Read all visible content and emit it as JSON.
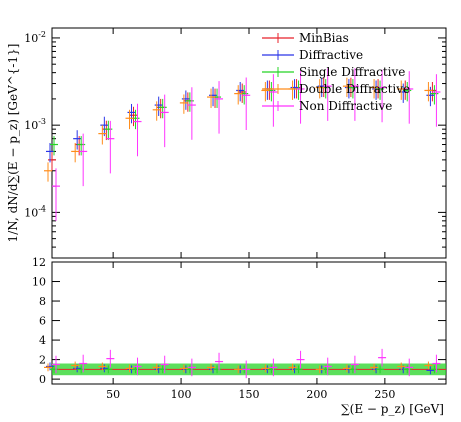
{
  "chart_data": [
    {
      "type": "scatter",
      "panel": "main",
      "title": "",
      "xlabel": "",
      "ylabel": "1/N, dN/d∑(E − p_z) [GeV^{-1}]",
      "xlim": [
        5,
        295
      ],
      "ylim": [
        3e-05,
        0.013
      ],
      "yscale": "log",
      "x_ticks": [
        50,
        100,
        150,
        200,
        250
      ],
      "y_tick_labels": [
        "10^{-4}",
        "10^{-3}",
        "10^{-2}"
      ],
      "legend": {
        "position": "top-right",
        "entries": [
          "MinBias",
          "Diffractive",
          "Single Diffractive",
          "Double Diffractive",
          "Non Diffractive"
        ]
      },
      "colors": {
        "MinBias": "#e8202a",
        "Diffractive": "#2a35e8",
        "Single Diffractive": "#25d425",
        "Double Diffractive": "#ff8c1a",
        "Non Diffractive": "#ff33ff"
      },
      "series": [
        {
          "name": "MinBias",
          "x": [
            5,
            25,
            45,
            65,
            85,
            105,
            125,
            145,
            165,
            185,
            205,
            225,
            245,
            265,
            285
          ],
          "y": [
            0.0004,
            0.0006,
            0.0009,
            0.0013,
            0.0016,
            0.0019,
            0.0021,
            0.0024,
            0.0026,
            0.0027,
            0.0028,
            0.0028,
            0.0027,
            0.0026,
            0.0025
          ]
        },
        {
          "name": "Diffractive",
          "x": [
            5,
            25,
            45,
            65,
            85,
            105,
            125,
            145,
            165,
            185,
            205,
            225,
            245,
            265,
            285
          ],
          "y": [
            0.0005,
            0.0007,
            0.001,
            0.0014,
            0.0017,
            0.002,
            0.0022,
            0.0025,
            0.0026,
            0.0027,
            0.0028,
            0.0027,
            0.0026,
            0.0024,
            0.0022
          ]
        },
        {
          "name": "Single Diffractive",
          "x": [
            5,
            25,
            45,
            65,
            85,
            105,
            125,
            145,
            165,
            185,
            205,
            225,
            245,
            265,
            285
          ],
          "y": [
            0.0006,
            0.0006,
            0.0009,
            0.0012,
            0.0016,
            0.0019,
            0.0021,
            0.0023,
            0.0025,
            0.0026,
            0.0027,
            0.0027,
            0.0026,
            0.0025,
            0.0023
          ]
        },
        {
          "name": "Double Diffractive",
          "x": [
            5,
            25,
            45,
            65,
            85,
            105,
            125,
            145,
            165,
            185,
            205,
            225,
            245,
            265,
            285
          ],
          "y": [
            0.0003,
            0.0005,
            0.0008,
            0.0012,
            0.0015,
            0.0018,
            0.0021,
            0.0023,
            0.0025,
            0.0026,
            0.0027,
            0.0028,
            0.0027,
            0.0026,
            0.0025
          ]
        },
        {
          "name": "Non Diffractive",
          "x": [
            5,
            25,
            45,
            65,
            85,
            105,
            125,
            145,
            165,
            185,
            205,
            225,
            245,
            265,
            285
          ],
          "y": [
            0.0002,
            0.0005,
            0.0007,
            0.0011,
            0.0014,
            0.0017,
            0.002,
            0.0022,
            0.0024,
            0.0026,
            0.0028,
            0.0028,
            0.0027,
            0.0026,
            0.0024
          ]
        }
      ]
    },
    {
      "type": "scatter",
      "panel": "ratio",
      "title": "",
      "xlabel": "∑(E − p_z) [GeV]",
      "ylabel": "",
      "xlim": [
        5,
        295
      ],
      "ylim": [
        -0.5,
        12
      ],
      "x_ticks": [
        50,
        100,
        150,
        200,
        250
      ],
      "y_ticks": [
        0,
        2,
        4,
        6,
        8,
        10,
        12
      ],
      "series": [
        {
          "name": "Diffractive",
          "x": [
            5,
            25,
            45,
            65,
            85,
            105,
            125,
            145,
            165,
            185,
            205,
            225,
            245,
            265,
            285
          ],
          "y": [
            1.3,
            1.1,
            1.1,
            1.0,
            1.0,
            1.0,
            1.0,
            1.0,
            1.0,
            1.0,
            1.0,
            1.0,
            1.0,
            1.0,
            0.9
          ]
        },
        {
          "name": "Single Diffractive",
          "x": [
            5,
            25,
            45,
            65,
            85,
            105,
            125,
            145,
            165,
            185,
            205,
            225,
            245,
            265,
            285
          ],
          "y": [
            1.0,
            1.0,
            1.0,
            1.0,
            1.0,
            1.0,
            1.0,
            1.0,
            1.0,
            1.0,
            1.0,
            1.0,
            1.0,
            1.0,
            1.0
          ]
        },
        {
          "name": "Double Diffractive",
          "x": [
            5,
            25,
            45,
            65,
            85,
            105,
            125,
            145,
            165,
            185,
            205,
            225,
            245,
            265,
            285
          ],
          "y": [
            1.2,
            1.4,
            1.3,
            1.1,
            1.2,
            1.1,
            1.2,
            1.0,
            1.1,
            1.2,
            1.0,
            1.1,
            1.2,
            1.3,
            1.4
          ]
        },
        {
          "name": "Non Diffractive",
          "x": [
            5,
            25,
            45,
            65,
            85,
            105,
            125,
            145,
            165,
            185,
            205,
            225,
            245,
            265,
            285
          ],
          "y": [
            1.5,
            1.6,
            2.1,
            1.3,
            1.5,
            1.2,
            1.8,
            1.0,
            1.2,
            2.0,
            1.3,
            1.5,
            2.2,
            1.2,
            1.6
          ]
        }
      ]
    }
  ]
}
